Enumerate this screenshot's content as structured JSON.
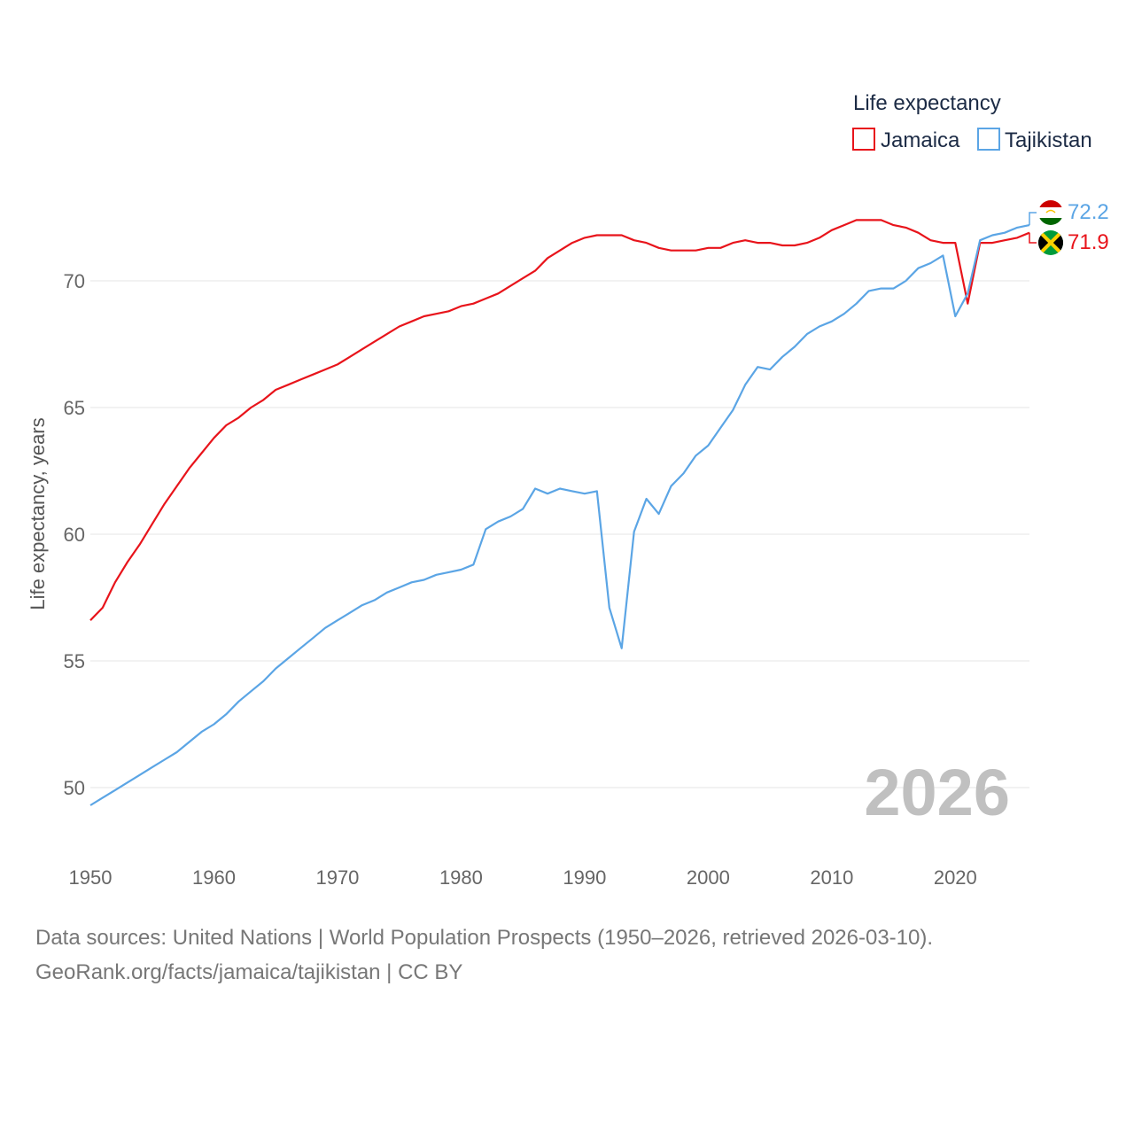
{
  "colors": {
    "jamaica": "#e8141b",
    "tajikistan": "#5ba5e5",
    "grid": "#e6e6e6",
    "watermark": "#c0c0c0"
  },
  "legend": {
    "title": "Life expectancy"
  },
  "watermark_year": "2026",
  "footer": {
    "line1": "Data sources: United Nations | World Population Prospects (1950–2026, retrieved 2026-03-10).",
    "line2": "GeoRank.org/facts/jamaica/tajikistan | CC BY"
  },
  "chart_data": {
    "type": "line",
    "title": "",
    "xlabel": "",
    "ylabel": "Life expectancy, years",
    "xlim": [
      1950,
      2026
    ],
    "ylim": [
      48.5,
      73.5
    ],
    "xticks": [
      1950,
      1960,
      1970,
      1980,
      1990,
      2000,
      2010,
      2020
    ],
    "yticks": [
      50,
      55,
      60,
      65,
      70
    ],
    "grid": true,
    "legend_position": "top-right",
    "x": [
      1950,
      1951,
      1952,
      1953,
      1954,
      1955,
      1956,
      1957,
      1958,
      1959,
      1960,
      1961,
      1962,
      1963,
      1964,
      1965,
      1966,
      1967,
      1968,
      1969,
      1970,
      1971,
      1972,
      1973,
      1974,
      1975,
      1976,
      1977,
      1978,
      1979,
      1980,
      1981,
      1982,
      1983,
      1984,
      1985,
      1986,
      1987,
      1988,
      1989,
      1990,
      1991,
      1992,
      1993,
      1994,
      1995,
      1996,
      1997,
      1998,
      1999,
      2000,
      2001,
      2002,
      2003,
      2004,
      2005,
      2006,
      2007,
      2008,
      2009,
      2010,
      2011,
      2012,
      2013,
      2014,
      2015,
      2016,
      2017,
      2018,
      2019,
      2020,
      2021,
      2022,
      2023,
      2024,
      2025,
      2026
    ],
    "series": [
      {
        "name": "Jamaica",
        "key": "jamaica",
        "end_label": "71.9",
        "values": [
          56.6,
          57.1,
          58.1,
          58.9,
          59.6,
          60.4,
          61.2,
          61.9,
          62.6,
          63.2,
          63.8,
          64.3,
          64.6,
          65.0,
          65.3,
          65.7,
          65.9,
          66.1,
          66.3,
          66.5,
          66.7,
          67.0,
          67.3,
          67.6,
          67.9,
          68.2,
          68.4,
          68.6,
          68.7,
          68.8,
          69.0,
          69.1,
          69.3,
          69.5,
          69.8,
          70.1,
          70.4,
          70.9,
          71.2,
          71.5,
          71.7,
          71.8,
          71.8,
          71.8,
          71.6,
          71.5,
          71.3,
          71.2,
          71.2,
          71.2,
          71.3,
          71.3,
          71.5,
          71.6,
          71.5,
          71.5,
          71.4,
          71.4,
          71.5,
          71.7,
          72.0,
          72.2,
          72.4,
          72.4,
          72.4,
          72.2,
          72.1,
          71.9,
          71.6,
          71.5,
          71.5,
          69.1,
          71.5,
          71.5,
          71.6,
          71.7,
          71.9
        ]
      },
      {
        "name": "Tajikistan",
        "key": "tajikistan",
        "end_label": "72.2",
        "values": [
          49.3,
          49.6,
          49.9,
          50.2,
          50.5,
          50.8,
          51.1,
          51.4,
          51.8,
          52.2,
          52.5,
          52.9,
          53.4,
          53.8,
          54.2,
          54.7,
          55.1,
          55.5,
          55.9,
          56.3,
          56.6,
          56.9,
          57.2,
          57.4,
          57.7,
          57.9,
          58.1,
          58.2,
          58.4,
          58.5,
          58.6,
          58.8,
          60.2,
          60.5,
          60.7,
          61.0,
          61.8,
          61.6,
          61.8,
          61.7,
          61.6,
          61.7,
          57.1,
          55.5,
          60.1,
          61.4,
          60.8,
          61.9,
          62.4,
          63.1,
          63.5,
          64.2,
          64.9,
          65.9,
          66.6,
          66.5,
          67.0,
          67.4,
          67.9,
          68.2,
          68.4,
          68.7,
          69.1,
          69.6,
          69.7,
          69.7,
          70.0,
          70.5,
          70.7,
          71.0,
          68.6,
          69.5,
          71.6,
          71.8,
          71.9,
          72.1,
          72.2
        ]
      }
    ]
  }
}
